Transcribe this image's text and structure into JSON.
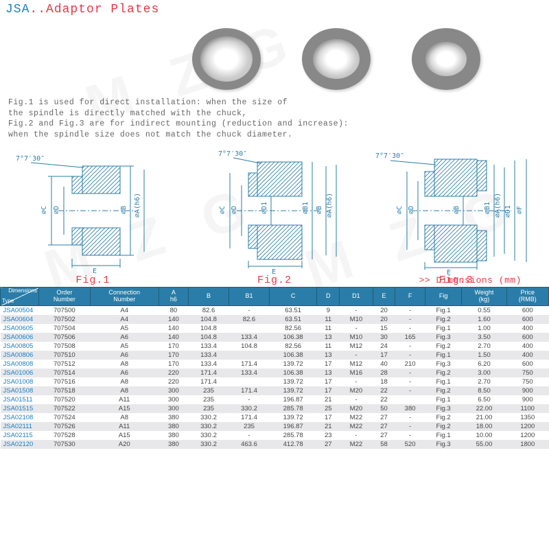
{
  "title": {
    "jsa": "JSA",
    "dots": "..",
    "rest": "Adaptor Plates"
  },
  "watermark": "M Z G",
  "desc": {
    "l1": "Fig.1 is used for direct installation: when the size of",
    "l2": "    the spindle is directly matched with the chuck,",
    "l3": "Fig.2 and Fig.3 are for indirect mounting (reduction and increase):",
    "l4": "    when the spindle size does not match the chuck diameter."
  },
  "diagrams": {
    "angle": "7°7′30″",
    "labels": [
      "Fig.1",
      "Fig.2",
      "Fig.3"
    ],
    "dims": {
      "a": "⌀A(h6)",
      "b": "⌀B",
      "b1": "⌀B1",
      "c": "⌀C",
      "d": "⌀D",
      "d1": "⌀D1",
      "e": "E",
      "f": "⌀F"
    }
  },
  "dim_note": ">> Dimensions (mm)",
  "table": {
    "header_diag": {
      "top": "Dimensions",
      "bottom": "Type"
    },
    "columns": [
      "Order\nNumber",
      "Connection\nNumber",
      "A\nh6",
      "B",
      "B1",
      "C",
      "D",
      "D1",
      "E",
      "F",
      "Fig",
      "Weight\n(kg)",
      "Price\n(RMB)"
    ],
    "rows": [
      [
        "JSA00504",
        "707500",
        "A4",
        "80",
        "82.6",
        "-",
        "63.51",
        "9",
        "-",
        "20",
        "-",
        "Fig.1",
        "0.55",
        "600"
      ],
      [
        "JSA00604",
        "707502",
        "A4",
        "140",
        "104.8",
        "82.6",
        "63.51",
        "11",
        "M10",
        "20",
        "-",
        "Fig.2",
        "1.60",
        "600"
      ],
      [
        "JSA00605",
        "707504",
        "A5",
        "140",
        "104.8",
        "",
        "82.56",
        "11",
        "-",
        "15",
        "-",
        "Fig.1",
        "1.00",
        "400"
      ],
      [
        "JSA00606",
        "707506",
        "A6",
        "140",
        "104.8",
        "133.4",
        "106.38",
        "13",
        "M10",
        "30",
        "165",
        "Fig.3",
        "3.50",
        "600"
      ],
      [
        "JSA00805",
        "707508",
        "A5",
        "170",
        "133.4",
        "104.8",
        "82.56",
        "11",
        "M12",
        "24",
        "-",
        "Fig.2",
        "2.70",
        "400"
      ],
      [
        "JSA00806",
        "707510",
        "A6",
        "170",
        "133.4",
        "",
        "106.38",
        "13",
        "-",
        "17",
        "-",
        "Fig.1",
        "1.50",
        "400"
      ],
      [
        "JSA00808",
        "707512",
        "A8",
        "170",
        "133.4",
        "171.4",
        "139.72",
        "17",
        "M12",
        "40",
        "210",
        "Fig.3",
        "6.20",
        "600"
      ],
      [
        "JSA01006",
        "707514",
        "A6",
        "220",
        "171.4",
        "133.4",
        "106.38",
        "13",
        "M16",
        "28",
        "-",
        "Fig.2",
        "3.00",
        "750"
      ],
      [
        "JSA01008",
        "707516",
        "A8",
        "220",
        "171.4",
        "",
        "139.72",
        "17",
        "-",
        "18",
        "-",
        "Fig.1",
        "2.70",
        "750"
      ],
      [
        "JSA01508",
        "707518",
        "A8",
        "300",
        "235",
        "171.4",
        "139.72",
        "17",
        "M20",
        "22",
        "-",
        "Fig.2",
        "8.50",
        "900"
      ],
      [
        "JSA01511",
        "707520",
        "A11",
        "300",
        "235",
        "-",
        "196.87",
        "21",
        "-",
        "22",
        "",
        "Fig.1",
        "6.50",
        "900"
      ],
      [
        "JSA01515",
        "707522",
        "A15",
        "300",
        "235",
        "330.2",
        "285.78",
        "25",
        "M20",
        "50",
        "380",
        "Fig.3",
        "22.00",
        "1100"
      ],
      [
        "JSA02108",
        "707524",
        "A8",
        "380",
        "330.2",
        "171.4",
        "139.72",
        "17",
        "M22",
        "27",
        "-",
        "Fig.2",
        "21.00",
        "1350"
      ],
      [
        "JSA02111",
        "707526",
        "A11",
        "380",
        "330.2",
        "235",
        "196.87",
        "21",
        "M22",
        "27",
        "-",
        "Fig.2",
        "18.00",
        "1200"
      ],
      [
        "JSA02115",
        "707528",
        "A15",
        "380",
        "330.2",
        "-",
        "285.78",
        "23",
        "-",
        "27",
        "-",
        "Fig.1",
        "10.00",
        "1200"
      ],
      [
        "JSA02120",
        "707530",
        "A20",
        "380",
        "330.2",
        "463.6",
        "412.78",
        "27",
        "M22",
        "58",
        "520",
        "Fig.3",
        "55.00",
        "1800"
      ]
    ]
  },
  "colors": {
    "blue": "#1a7fc9",
    "red": "#e63946",
    "header": "#2a7da8",
    "shade": "#e8e8ea",
    "diagram_stroke": "#2a7da8",
    "hatch": "#2a7da8"
  }
}
